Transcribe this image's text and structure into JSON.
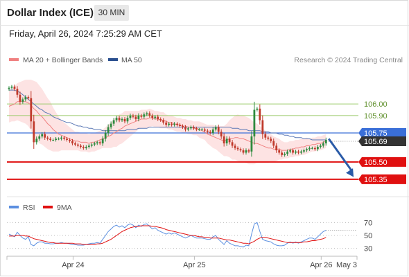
{
  "header": {
    "title": "Dollar Index (ICE)",
    "timeframe": "30 MIN",
    "datetime": "Friday, April 26, 2024 7:25:29 AM CET"
  },
  "legend": {
    "ma20": "MA 20 + Bollinger Bands",
    "ma50": "MA 50",
    "credit": "Research © 2024 Trading Central",
    "rsi": "RSI",
    "rsi_ma": "9MA"
  },
  "colors": {
    "up": "#2d8a3e",
    "down": "#c0392b",
    "ma20": "#f08080",
    "bollinger": "#fde3e3",
    "ma50": "#5b78b5",
    "green_level": "#9ccb6b",
    "blue_level": "#3a6fd8",
    "red_level": "#e01010",
    "arrow": "#2a5ba8",
    "rsi": "#5b8fe0",
    "rsi_ma": "#e01010"
  },
  "chart_data": [
    {
      "type": "candlestick",
      "ylim": [
        105.2,
        106.3
      ],
      "x_range": [
        0,
        127
      ],
      "x_ticks": [
        {
          "x": 24,
          "label": "Apr 24"
        },
        {
          "x": 68,
          "label": "Apr 25"
        },
        {
          "x": 114,
          "label": "Apr 26"
        },
        {
          "x": 127,
          "label": "May 3"
        }
      ],
      "levels": [
        {
          "value": 106.0,
          "label": "106.00",
          "style": "green"
        },
        {
          "value": 105.9,
          "label": "105.90",
          "style": "green"
        },
        {
          "value": 105.75,
          "label": "105.75",
          "style": "blue"
        },
        {
          "value": 105.5,
          "label": "105.50",
          "style": "red"
        },
        {
          "value": 105.35,
          "label": "105.35",
          "style": "red"
        }
      ],
      "last_price": {
        "value": 105.69,
        "label": "105.69"
      },
      "projection": {
        "from_x": 116,
        "from_y": 105.7,
        "to_x": 125,
        "to_y": 105.37
      },
      "series_close": [
        106.14,
        106.15,
        106.13,
        106.08,
        106.02,
        106.04,
        106.06,
        106.05,
        105.85,
        105.67,
        105.7,
        105.72,
        105.74,
        105.71,
        105.7,
        105.69,
        105.69,
        105.7,
        105.7,
        105.71,
        105.7,
        105.69,
        105.68,
        105.66,
        105.65,
        105.64,
        105.63,
        105.62,
        105.63,
        105.64,
        105.65,
        105.66,
        105.67,
        105.66,
        105.7,
        105.75,
        105.8,
        105.83,
        105.86,
        105.88,
        105.86,
        105.87,
        105.85,
        105.88,
        105.9,
        105.89,
        105.87,
        105.9,
        105.89,
        105.91,
        105.92,
        105.9,
        105.88,
        105.89,
        105.87,
        105.86,
        105.84,
        105.82,
        105.83,
        105.82,
        105.83,
        105.82,
        105.81,
        105.8,
        105.78,
        105.79,
        105.8,
        105.79,
        105.78,
        105.78,
        105.78,
        105.77,
        105.76,
        105.75,
        105.78,
        105.8,
        105.76,
        105.72,
        105.66,
        105.7,
        105.67,
        105.64,
        105.62,
        105.61,
        105.6,
        105.58,
        105.6,
        105.59,
        105.72,
        105.95,
        105.96,
        105.86,
        105.74,
        105.71,
        105.7,
        105.68,
        105.64,
        105.6,
        105.58,
        105.56,
        105.57,
        105.59,
        105.6,
        105.58,
        105.59,
        105.58,
        105.59,
        105.6,
        105.61,
        105.62,
        105.62,
        105.61,
        105.63,
        105.64,
        105.66,
        105.69
      ],
      "ma20": [
        105.98,
        105.99,
        106.0,
        106.02,
        106.02,
        106.02,
        106.02,
        106.01,
        105.99,
        105.96,
        105.94,
        105.91,
        105.89,
        105.86,
        105.83,
        105.81,
        105.78,
        105.76,
        105.74,
        105.73,
        105.72,
        105.71,
        105.7,
        105.69,
        105.68,
        105.68,
        105.67,
        105.67,
        105.67,
        105.66,
        105.67,
        105.67,
        105.68,
        105.69,
        105.7,
        105.71,
        105.72,
        105.73,
        105.75,
        105.76,
        105.78,
        105.79,
        105.81,
        105.82,
        105.83,
        105.84,
        105.85,
        105.86,
        105.87,
        105.87,
        105.87,
        105.88,
        105.88,
        105.87,
        105.87,
        105.86,
        105.86,
        105.85,
        105.84,
        105.84,
        105.83,
        105.82,
        105.82,
        105.81,
        105.81,
        105.8,
        105.8,
        105.79,
        105.79,
        105.78,
        105.77,
        105.76,
        105.74,
        105.73,
        105.72,
        105.71,
        105.7,
        105.69,
        105.68,
        105.69,
        105.7,
        105.7,
        105.71,
        105.71,
        105.7,
        105.7,
        105.69,
        105.68,
        105.67,
        105.66,
        105.66,
        105.65,
        105.64,
        105.63,
        105.62,
        105.62,
        105.61,
        105.61,
        105.61,
        105.6,
        105.6,
        105.6,
        105.61,
        105.61,
        105.62,
        105.62,
        105.63,
        105.63,
        105.64,
        105.64,
        105.65,
        105.65,
        105.66,
        105.66,
        105.67,
        105.68
      ],
      "ma50": [
        106.12,
        106.12,
        106.12,
        106.11,
        106.1,
        106.08,
        106.06,
        106.04,
        106.02,
        106.0,
        105.98,
        105.96,
        105.95,
        105.93,
        105.92,
        105.91,
        105.89,
        105.88,
        105.87,
        105.86,
        105.85,
        105.84,
        105.84,
        105.83,
        105.82,
        105.81,
        105.81,
        105.8,
        105.8,
        105.79,
        105.79,
        105.78,
        105.78,
        105.78,
        105.77,
        105.77,
        105.77,
        105.77,
        105.77,
        105.77,
        105.77,
        105.77,
        105.77,
        105.78,
        105.78,
        105.78,
        105.78,
        105.79,
        105.79,
        105.79,
        105.79,
        105.8,
        105.8,
        105.8,
        105.8,
        105.8,
        105.8,
        105.8,
        105.8,
        105.8,
        105.8,
        105.8,
        105.8,
        105.8,
        105.8,
        105.8,
        105.8,
        105.8,
        105.8,
        105.8,
        105.8,
        105.8,
        105.8,
        105.8,
        105.8,
        105.8,
        105.8,
        105.8,
        105.8,
        105.8,
        105.8,
        105.79,
        105.79,
        105.79,
        105.78,
        105.78,
        105.78,
        105.77,
        105.77,
        105.77,
        105.77,
        105.77,
        105.76,
        105.76,
        105.76,
        105.75,
        105.75,
        105.75,
        105.74,
        105.74,
        105.73,
        105.73,
        105.72,
        105.72,
        105.71,
        105.71,
        105.71,
        105.7,
        105.7,
        105.7,
        105.69,
        105.69,
        105.69,
        105.69,
        105.69,
        105.69
      ],
      "band_width": [
        0.14,
        0.14,
        0.15,
        0.16,
        0.17,
        0.18,
        0.19,
        0.2,
        0.22,
        0.24,
        0.25,
        0.25,
        0.24,
        0.23,
        0.22,
        0.21,
        0.19,
        0.17,
        0.15,
        0.13,
        0.12,
        0.11,
        0.1,
        0.09,
        0.08,
        0.08,
        0.08,
        0.08,
        0.08,
        0.08,
        0.08,
        0.08,
        0.08,
        0.08,
        0.08,
        0.09,
        0.1,
        0.11,
        0.12,
        0.13,
        0.13,
        0.13,
        0.13,
        0.12,
        0.11,
        0.1,
        0.09,
        0.08,
        0.08,
        0.08,
        0.08,
        0.08,
        0.07,
        0.07,
        0.07,
        0.07,
        0.07,
        0.06,
        0.06,
        0.06,
        0.06,
        0.06,
        0.06,
        0.06,
        0.06,
        0.06,
        0.06,
        0.06,
        0.06,
        0.07,
        0.07,
        0.07,
        0.08,
        0.09,
        0.1,
        0.1,
        0.11,
        0.12,
        0.13,
        0.14,
        0.16,
        0.18,
        0.19,
        0.2,
        0.2,
        0.2,
        0.2,
        0.2,
        0.19,
        0.18,
        0.17,
        0.16,
        0.15,
        0.14,
        0.13,
        0.12,
        0.11,
        0.1,
        0.09,
        0.08,
        0.07,
        0.07,
        0.07,
        0.07,
        0.07,
        0.07,
        0.07,
        0.07,
        0.07,
        0.06,
        0.06,
        0.06,
        0.06,
        0.06,
        0.06,
        0.06
      ]
    },
    {
      "type": "line",
      "title": "RSI",
      "ylim": [
        20,
        80
      ],
      "y_ticks": [
        {
          "value": 70,
          "label": "70"
        },
        {
          "value": 50,
          "label": "50"
        },
        {
          "value": 30,
          "label": "30"
        }
      ],
      "series": [
        {
          "name": "RSI",
          "values": [
            52,
            50,
            48,
            55,
            50,
            46,
            44,
            48,
            36,
            34,
            38,
            40,
            40,
            38,
            38,
            37,
            37,
            38,
            38,
            39,
            38,
            38,
            37,
            36,
            36,
            35,
            35,
            35,
            36,
            37,
            38,
            38,
            39,
            38,
            44,
            50,
            56,
            60,
            64,
            66,
            63,
            65,
            62,
            66,
            68,
            66,
            62,
            66,
            64,
            67,
            68,
            64,
            60,
            62,
            58,
            56,
            54,
            52,
            54,
            52,
            54,
            52,
            50,
            48,
            46,
            48,
            50,
            48,
            46,
            46,
            46,
            45,
            44,
            44,
            48,
            50,
            44,
            40,
            36,
            42,
            38,
            36,
            34,
            34,
            33,
            32,
            35,
            34,
            52,
            68,
            70,
            56,
            44,
            42,
            41,
            40,
            37,
            35,
            34,
            34,
            35,
            38,
            40,
            38,
            40,
            38,
            40,
            42,
            44,
            46,
            46,
            44,
            48,
            52,
            56,
            58
          ]
        },
        {
          "name": "9MA",
          "values": [
            49,
            49,
            49,
            50,
            50,
            50,
            49,
            49,
            47,
            45,
            44,
            43,
            42,
            41,
            40,
            39,
            39,
            38,
            38,
            38,
            38,
            38,
            38,
            38,
            37,
            37,
            37,
            36,
            36,
            36,
            36,
            36,
            37,
            37,
            38,
            40,
            42,
            44,
            47,
            50,
            53,
            56,
            58,
            60,
            62,
            63,
            64,
            64,
            65,
            65,
            65,
            65,
            64,
            64,
            63,
            62,
            61,
            59,
            58,
            57,
            56,
            55,
            54,
            53,
            52,
            51,
            50,
            50,
            49,
            48,
            48,
            47,
            47,
            46,
            46,
            46,
            46,
            45,
            44,
            43,
            43,
            42,
            41,
            40,
            39,
            38,
            38,
            37,
            39,
            41,
            44,
            46,
            47,
            47,
            46,
            45,
            44,
            43,
            42,
            41,
            40,
            39,
            39,
            39,
            39,
            39,
            39,
            40,
            40,
            41,
            42,
            42,
            43,
            44,
            45,
            47
          ]
        }
      ]
    }
  ]
}
